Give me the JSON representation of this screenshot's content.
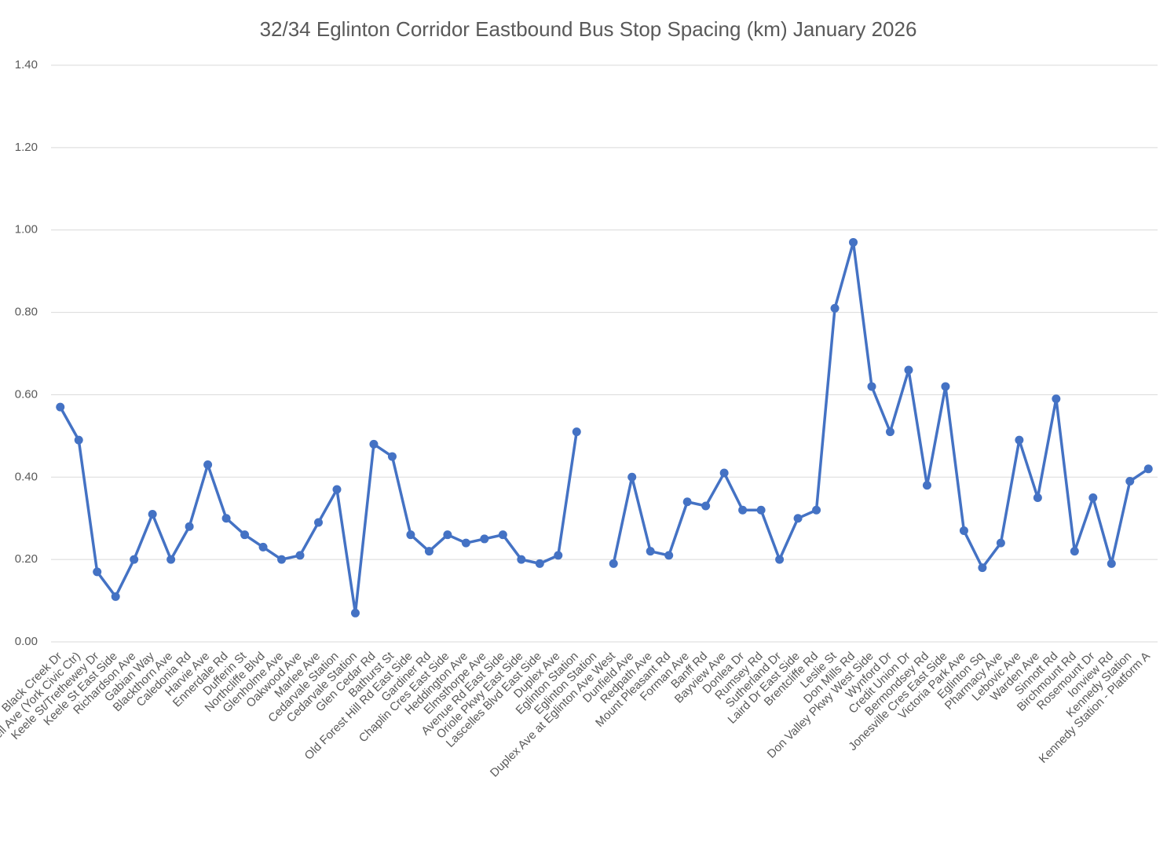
{
  "chart_data": {
    "type": "line",
    "title": "32/34 Eglinton Corridor Eastbound Bus Stop Spacing (km) January 2026",
    "categories": [
      "Black Creek Dr",
      "Bicknell Ave (York Civic Ctr)",
      "Keele St/Trethewey Dr",
      "Keele St East Side",
      "Richardson Ave",
      "Gabian Way",
      "Blackthorn Ave",
      "Caledonia Rd",
      "Harvie Ave",
      "Ennerdale Rd",
      "Dufferin St",
      "Northcliffe Blvd",
      "Glenholme Ave",
      "Oakwood Ave",
      "Marlee Ave",
      "Cedarvale Station",
      "Cedarvale Station",
      "Glen Cedar Rd",
      "Bathurst St",
      "Old Forest Hill Rd East Side",
      "Gardiner Rd",
      "Chaplin Cres East Side",
      "Heddington Ave",
      "Elmsthorpe Ave",
      "Avenue Rd East Side",
      "Oriole Pkwy East Side",
      "Lascelles Blvd East Side",
      "Duplex Ave",
      "Eglinton Station",
      "Eglinton Station",
      "Duplex Ave at Eglinton Ave West",
      "Dunfield Ave",
      "Redpath Ave",
      "Mount Pleasant Rd",
      "Forman Ave",
      "Banff Rd",
      "Bayview Ave",
      "Donlea Dr",
      "Rumsey Rd",
      "Sutherland Dr",
      "Laird Dr East Side",
      "Brentcliffe Rd",
      "Leslie St",
      "Don Mills Rd",
      "Don Valley Pkwy West Side",
      "Wynford Dr",
      "Credit Union Dr",
      "Bermondsey Rd",
      "Jonesville Cres East Side",
      "Victoria Park Ave",
      "Eglinton Sq",
      "Pharmacy Ave",
      "Lebovic Ave",
      "Warden Ave",
      "Sinnott Rd",
      "Birchmount Rd",
      "Rosemount Dr",
      "Ionview Rd",
      "Kennedy Station",
      "Kennedy Station - Platform A"
    ],
    "series": [
      {
        "color": "#4472c4",
        "values": [
          0.57,
          0.49,
          0.17,
          0.11,
          0.2,
          0.31,
          0.2,
          0.28,
          0.43,
          0.3,
          0.26,
          0.23,
          0.2,
          0.21,
          0.29,
          0.37,
          0.07,
          0.48,
          0.45,
          0.26,
          0.22,
          0.26,
          0.24,
          0.25,
          0.26,
          0.2,
          0.19,
          0.21,
          0.51,
          null,
          0.19,
          0.4,
          0.22,
          0.21,
          0.34,
          0.33,
          0.41,
          0.32,
          0.32,
          0.2,
          0.3,
          0.32,
          0.81,
          0.97,
          0.62,
          0.51,
          0.66,
          0.38,
          0.62,
          0.27,
          0.18,
          0.24,
          0.49,
          0.35,
          0.59,
          0.22,
          0.35,
          0.19,
          0.39,
          0.42
        ]
      }
    ],
    "ylim": [
      0,
      1.4
    ],
    "yticks": [
      {
        "value": 0,
        "label": "0.00"
      },
      {
        "value": 0.2,
        "label": "0.20"
      },
      {
        "value": 0.4,
        "label": "0.40"
      },
      {
        "value": 0.6,
        "label": "0.60"
      },
      {
        "value": 0.8,
        "label": "0.80"
      },
      {
        "value": 1.0,
        "label": "1.00"
      },
      {
        "value": 1.2,
        "label": "1.20"
      },
      {
        "value": 1.4,
        "label": "1.40"
      }
    ],
    "grid": true
  }
}
